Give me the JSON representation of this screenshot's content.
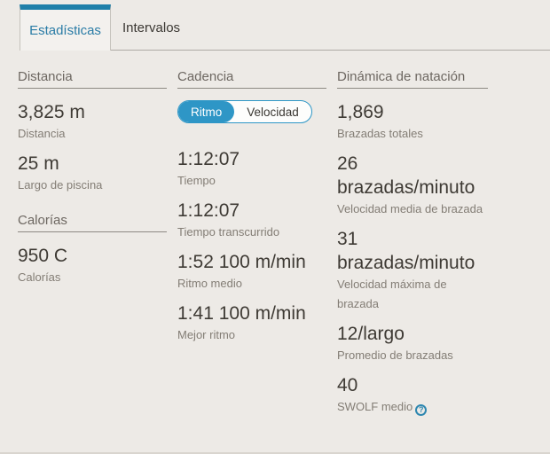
{
  "colors": {
    "background": "#edeae6",
    "tab_top_bar": "#1f7fa9",
    "tab_active_text": "#2a7ca6",
    "toggle_accent": "#2e96c6",
    "help_icon_blue": "#2e87b0",
    "value_text": "#3e3a34",
    "label_text": "#837d75"
  },
  "tabs": {
    "estadisticas": {
      "label": "Estadísticas",
      "active": true
    },
    "intervalos": {
      "label": "Intervalos",
      "active": false
    }
  },
  "sections": {
    "distancia": {
      "header": "Distancia",
      "stats": [
        {
          "value": "3,825 m",
          "label": "Distancia"
        },
        {
          "value": "25 m",
          "label": "Largo de piscina"
        }
      ]
    },
    "calorias": {
      "header": "Calorías",
      "stats": [
        {
          "value": "950 C",
          "label": "Calorías"
        }
      ]
    },
    "cadencia": {
      "header": "Cadencia",
      "toggle": {
        "options": [
          "Ritmo",
          "Velocidad"
        ],
        "selected": "Ritmo"
      },
      "stats": [
        {
          "value": "1:12:07",
          "label": "Tiempo"
        },
        {
          "value": "1:12:07",
          "label": "Tiempo transcurrido"
        },
        {
          "value": "1:52 100 m/min",
          "label": "Ritmo medio"
        },
        {
          "value": "1:41 100 m/min",
          "label": "Mejor ritmo"
        }
      ]
    },
    "dinamica": {
      "header": "Dinámica de natación",
      "stats": [
        {
          "value": "1,869",
          "label": "Brazadas totales"
        },
        {
          "value": "26 brazadas/minuto",
          "label": "Velocidad media de brazada"
        },
        {
          "value": "31 brazadas/minuto",
          "label": "Velocidad máxima de brazada"
        },
        {
          "value": "12/largo",
          "label": "Promedio de brazadas"
        },
        {
          "value": "40",
          "label": "SWOLF medio"
        }
      ],
      "help_icon_glyph": "?"
    }
  }
}
